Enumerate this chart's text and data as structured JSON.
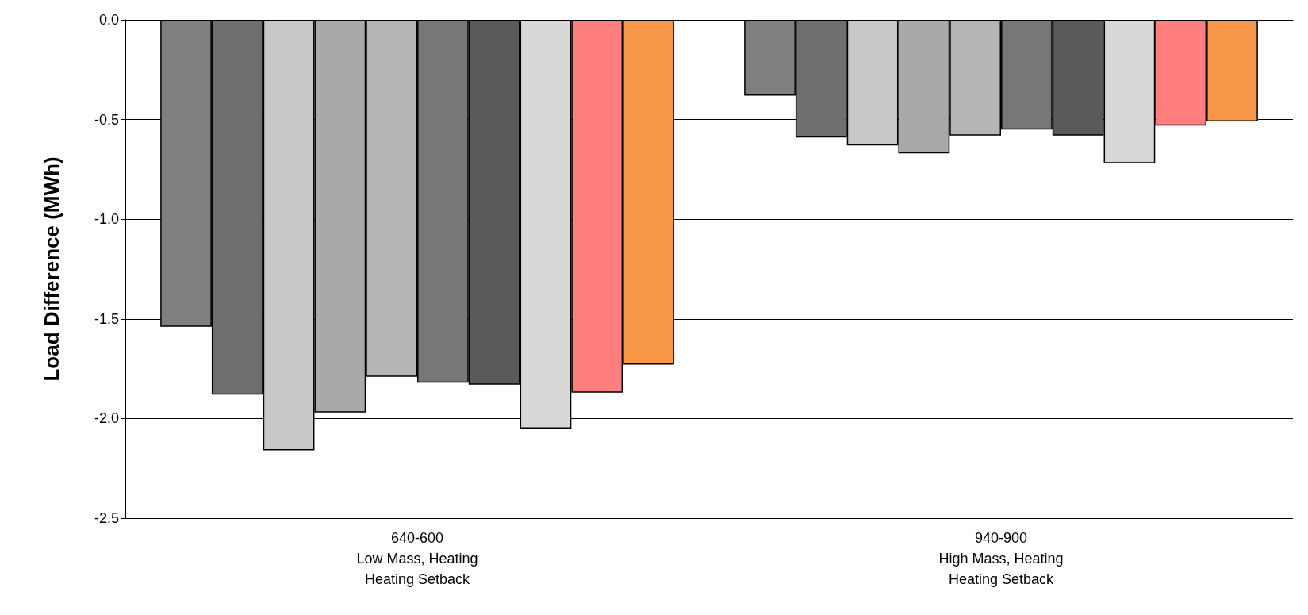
{
  "chart_data": {
    "type": "bar",
    "ylabel": "Load Difference (MWh)",
    "categories": [
      "640-600\nLow Mass, Heating\nHeating Setback",
      "940-900\nHigh Mass, Heating\nHeating Setback"
    ],
    "series": [
      {
        "color": "#7f7f7f",
        "values": [
          -1.54,
          -0.38
        ]
      },
      {
        "color": "#6f6f6f",
        "values": [
          -1.88,
          -0.59
        ]
      },
      {
        "color": "#c8c8c8",
        "values": [
          -2.16,
          -0.63
        ]
      },
      {
        "color": "#a9a9a9",
        "values": [
          -1.97,
          -0.67
        ]
      },
      {
        "color": "#b5b5b5",
        "values": [
          -1.79,
          -0.58
        ]
      },
      {
        "color": "#777777",
        "values": [
          -1.82,
          -0.55
        ]
      },
      {
        "color": "#5a5a5a",
        "values": [
          -1.83,
          -0.58
        ]
      },
      {
        "color": "#d8d8d8",
        "values": [
          -2.05,
          -0.72
        ]
      },
      {
        "color": "#ff7f7f",
        "values": [
          -1.87,
          -0.53
        ]
      },
      {
        "color": "#f79646",
        "values": [
          -1.73,
          -0.51
        ]
      }
    ],
    "ylim": [
      -2.5,
      0
    ],
    "yticks": [
      {
        "value": -2.5,
        "label": "-2.5"
      },
      {
        "value": -2,
        "label": "-2.0"
      },
      {
        "value": -1.5,
        "label": "-1.5"
      },
      {
        "value": -1,
        "label": "-1.0"
      },
      {
        "value": -0.5,
        "label": "-0.5"
      },
      {
        "value": 0,
        "label": "0.0"
      }
    ],
    "grid": "y"
  }
}
